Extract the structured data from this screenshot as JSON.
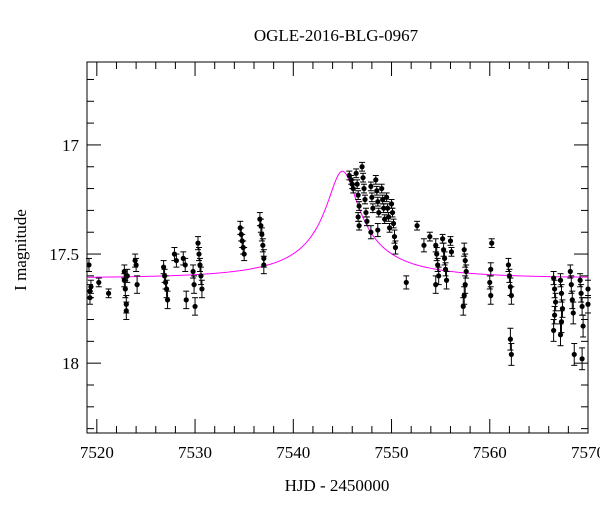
{
  "chart_data": {
    "type": "scatter",
    "title": "OGLE-2016-BLG-0967",
    "xlabel": "HJD - 2450000",
    "ylabel": "I magnitude",
    "xlim": [
      7519,
      7570
    ],
    "ylim": [
      18.32,
      16.62
    ],
    "y_inverted": true,
    "x_ticks": [
      7520,
      7530,
      7540,
      7550,
      7560,
      7570
    ],
    "x_tick_labels": [
      "7520",
      "7530",
      "7540",
      "7550",
      "7560",
      "7570"
    ],
    "y_ticks": [
      17,
      17.5,
      18
    ],
    "y_tick_labels": [
      "17",
      "17.5",
      "18"
    ],
    "grid": false,
    "colors": {
      "points": "#000000",
      "model": "#ff00ff"
    },
    "series": [
      {
        "type": "scatter",
        "points": [
          [
            7519.2,
            17.55,
            0.03
          ],
          [
            7519.3,
            17.67,
            0.03
          ],
          [
            7519.3,
            17.7,
            0.03
          ],
          [
            7519.4,
            17.65,
            0.03
          ],
          [
            7520.2,
            17.63,
            0.02
          ],
          [
            7521.2,
            17.68,
            0.02
          ],
          [
            7522.8,
            17.58,
            0.03
          ],
          [
            7522.8,
            17.62,
            0.03
          ],
          [
            7522.9,
            17.66,
            0.04
          ],
          [
            7523.0,
            17.73,
            0.04
          ],
          [
            7523.0,
            17.76,
            0.04
          ],
          [
            7523.1,
            17.6,
            0.03
          ],
          [
            7523.9,
            17.53,
            0.03
          ],
          [
            7524.0,
            17.55,
            0.03
          ],
          [
            7524.1,
            17.64,
            0.04
          ],
          [
            7526.8,
            17.56,
            0.03
          ],
          [
            7526.9,
            17.6,
            0.03
          ],
          [
            7527.0,
            17.63,
            0.03
          ],
          [
            7527.1,
            17.66,
            0.04
          ],
          [
            7527.2,
            17.71,
            0.04
          ],
          [
            7527.9,
            17.5,
            0.03
          ],
          [
            7528.1,
            17.53,
            0.03
          ],
          [
            7528.8,
            17.52,
            0.03
          ],
          [
            7529.0,
            17.55,
            0.03
          ],
          [
            7529.1,
            17.71,
            0.04
          ],
          [
            7529.8,
            17.58,
            0.03
          ],
          [
            7529.9,
            17.64,
            0.04
          ],
          [
            7530.0,
            17.74,
            0.04
          ],
          [
            7530.3,
            17.45,
            0.03
          ],
          [
            7530.4,
            17.5,
            0.03
          ],
          [
            7530.5,
            17.55,
            0.03
          ],
          [
            7530.6,
            17.6,
            0.04
          ],
          [
            7530.7,
            17.66,
            0.04
          ],
          [
            7534.6,
            17.38,
            0.03
          ],
          [
            7534.7,
            17.41,
            0.03
          ],
          [
            7534.8,
            17.44,
            0.03
          ],
          [
            7534.9,
            17.47,
            0.03
          ],
          [
            7535.0,
            17.5,
            0.03
          ],
          [
            7536.6,
            17.34,
            0.03
          ],
          [
            7536.7,
            17.37,
            0.03
          ],
          [
            7536.8,
            17.41,
            0.03
          ],
          [
            7536.9,
            17.46,
            0.03
          ],
          [
            7537.0,
            17.52,
            0.04
          ],
          [
            7537.0,
            17.55,
            0.04
          ],
          [
            7545.7,
            17.14,
            0.02
          ],
          [
            7545.9,
            17.16,
            0.02
          ],
          [
            7546.0,
            17.18,
            0.02
          ],
          [
            7546.1,
            17.2,
            0.02
          ],
          [
            7546.4,
            17.13,
            0.02
          ],
          [
            7546.5,
            17.18,
            0.02
          ],
          [
            7546.6,
            17.23,
            0.02
          ],
          [
            7546.7,
            17.28,
            0.02
          ],
          [
            7546.6,
            17.33,
            0.02
          ],
          [
            7546.7,
            17.37,
            0.02
          ],
          [
            7547.0,
            17.1,
            0.02
          ],
          [
            7547.1,
            17.15,
            0.02
          ],
          [
            7547.2,
            17.2,
            0.02
          ],
          [
            7547.3,
            17.25,
            0.02
          ],
          [
            7547.4,
            17.31,
            0.02
          ],
          [
            7547.5,
            17.35,
            0.02
          ],
          [
            7547.9,
            17.19,
            0.02
          ],
          [
            7548.0,
            17.24,
            0.02
          ],
          [
            7548.1,
            17.29,
            0.02
          ],
          [
            7547.9,
            17.4,
            0.03
          ],
          [
            7548.4,
            17.16,
            0.02
          ],
          [
            7548.5,
            17.21,
            0.02
          ],
          [
            7548.6,
            17.26,
            0.02
          ],
          [
            7548.7,
            17.31,
            0.02
          ],
          [
            7548.6,
            17.39,
            0.03
          ],
          [
            7549.0,
            17.2,
            0.02
          ],
          [
            7549.1,
            17.25,
            0.02
          ],
          [
            7549.2,
            17.29,
            0.02
          ],
          [
            7549.3,
            17.34,
            0.02
          ],
          [
            7549.5,
            17.24,
            0.02
          ],
          [
            7549.6,
            17.29,
            0.02
          ],
          [
            7549.7,
            17.33,
            0.02
          ],
          [
            7549.8,
            17.38,
            0.02
          ],
          [
            7550.0,
            17.27,
            0.02
          ],
          [
            7550.1,
            17.31,
            0.02
          ],
          [
            7550.2,
            17.36,
            0.02
          ],
          [
            7550.3,
            17.42,
            0.03
          ],
          [
            7550.4,
            17.47,
            0.03
          ],
          [
            7551.5,
            17.63,
            0.03
          ],
          [
            7552.6,
            17.37,
            0.02
          ],
          [
            7553.3,
            17.46,
            0.03
          ],
          [
            7553.9,
            17.42,
            0.02
          ],
          [
            7554.5,
            17.46,
            0.03
          ],
          [
            7554.6,
            17.5,
            0.03
          ],
          [
            7554.7,
            17.55,
            0.03
          ],
          [
            7554.8,
            17.6,
            0.04
          ],
          [
            7554.5,
            17.64,
            0.04
          ],
          [
            7555.2,
            17.43,
            0.02
          ],
          [
            7555.3,
            17.48,
            0.03
          ],
          [
            7555.4,
            17.52,
            0.03
          ],
          [
            7555.5,
            17.57,
            0.03
          ],
          [
            7555.6,
            17.62,
            0.04
          ],
          [
            7556.0,
            17.44,
            0.02
          ],
          [
            7556.1,
            17.49,
            0.02
          ],
          [
            7557.4,
            17.48,
            0.03
          ],
          [
            7557.5,
            17.53,
            0.03
          ],
          [
            7557.6,
            17.58,
            0.03
          ],
          [
            7557.5,
            17.64,
            0.04
          ],
          [
            7557.4,
            17.69,
            0.04
          ],
          [
            7557.3,
            17.74,
            0.04
          ],
          [
            7560.2,
            17.45,
            0.02
          ],
          [
            7560.1,
            17.57,
            0.03
          ],
          [
            7560.0,
            17.63,
            0.03
          ],
          [
            7560.1,
            17.69,
            0.04
          ],
          [
            7561.9,
            17.55,
            0.03
          ],
          [
            7562.0,
            17.6,
            0.03
          ],
          [
            7562.1,
            17.65,
            0.04
          ],
          [
            7562.2,
            17.69,
            0.04
          ],
          [
            7562.1,
            17.89,
            0.05
          ],
          [
            7562.2,
            17.96,
            0.05
          ],
          [
            7566.5,
            17.61,
            0.03
          ],
          [
            7566.6,
            17.66,
            0.04
          ],
          [
            7566.7,
            17.72,
            0.04
          ],
          [
            7566.6,
            17.78,
            0.04
          ],
          [
            7566.5,
            17.85,
            0.05
          ],
          [
            7567.2,
            17.62,
            0.03
          ],
          [
            7567.3,
            17.68,
            0.04
          ],
          [
            7567.4,
            17.75,
            0.04
          ],
          [
            7567.3,
            17.81,
            0.05
          ],
          [
            7567.2,
            17.87,
            0.05
          ],
          [
            7568.2,
            17.58,
            0.03
          ],
          [
            7568.3,
            17.64,
            0.04
          ],
          [
            7568.4,
            17.71,
            0.04
          ],
          [
            7568.5,
            17.77,
            0.05
          ],
          [
            7568.6,
            17.96,
            0.05
          ],
          [
            7569.2,
            17.62,
            0.03
          ],
          [
            7569.3,
            17.68,
            0.04
          ],
          [
            7569.4,
            17.74,
            0.04
          ],
          [
            7569.5,
            17.83,
            0.05
          ],
          [
            7569.4,
            17.98,
            0.05
          ],
          [
            7570.0,
            17.66,
            0.04
          ],
          [
            7570.0,
            17.73,
            0.04
          ]
        ]
      },
      {
        "type": "line",
        "model": {
          "t0": 7545.0,
          "base_mag": 17.61,
          "peak_mag": 17.12,
          "u0": 0.14,
          "tE": 11.8
        }
      }
    ]
  }
}
